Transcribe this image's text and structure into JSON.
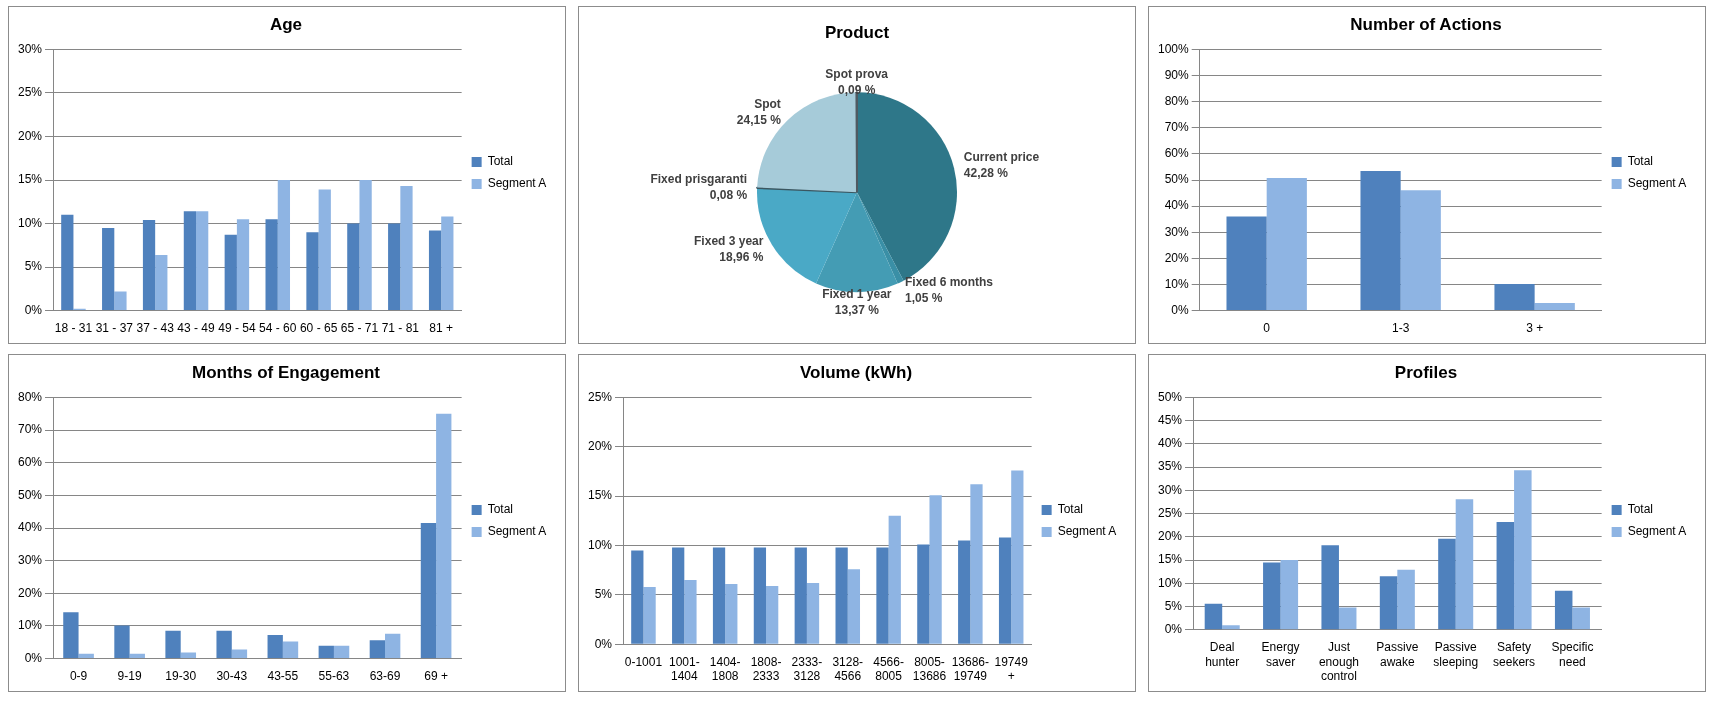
{
  "chart_data": [
    {
      "type": "bar",
      "title": "Age",
      "categories": [
        "18 - 31",
        "31 - 37",
        "37 - 43",
        "43 - 49",
        "49 - 54",
        "54 - 60",
        "60 - 65",
        "65 - 71",
        "71 - 81",
        "81 +"
      ],
      "series": [
        {
          "name": "Total",
          "color": "#4f81bd",
          "values": [
            11.0,
            9.5,
            10.4,
            11.4,
            8.7,
            10.5,
            9.0,
            10.0,
            10.0,
            9.2
          ]
        },
        {
          "name": "Segment A",
          "color": "#8eb4e3",
          "values": [
            0.2,
            2.2,
            6.4,
            11.4,
            10.5,
            15.0,
            13.9,
            15.0,
            14.3,
            10.8
          ]
        }
      ],
      "ylim": [
        0,
        30
      ],
      "yticks": [
        {
          "value": 0,
          "label": "0%"
        },
        {
          "value": 5,
          "label": "5%"
        },
        {
          "value": 10,
          "label": "10%"
        },
        {
          "value": 15,
          "label": "15%"
        },
        {
          "value": 20,
          "label": "20%"
        },
        {
          "value": 25,
          "label": "25%"
        },
        {
          "value": 30,
          "label": "30%"
        }
      ],
      "grid": "y",
      "legend": "right"
    },
    {
      "type": "pie",
      "title": "Product",
      "categories": [
        "Current price",
        "Fixed 6 months",
        "Fixed 1 year",
        "Fixed 3 year",
        "Fixed prisgaranti",
        "Spot",
        "Spot prova"
      ],
      "values": [
        42.28,
        1.05,
        13.37,
        18.96,
        0.08,
        24.15,
        0.09
      ],
      "colors": [
        "#2e7789",
        "#3a8fa6",
        "#449cb4",
        "#4aa9c6",
        "#3a5660",
        "#a6cbd9",
        "#4f5a62"
      ],
      "value_labels": [
        "42,28 %",
        "1,05 %",
        "13,37 %",
        "18,96 %",
        "0,08 %",
        "24,15 %",
        "0,09 %"
      ]
    },
    {
      "type": "bar",
      "title": "Number of Actions",
      "categories": [
        "0",
        "1-3",
        "3 +"
      ],
      "series": [
        {
          "name": "Total",
          "color": "#4f81bd",
          "values": [
            36.0,
            53.4,
            10.2
          ]
        },
        {
          "name": "Segment A",
          "color": "#8eb4e3",
          "values": [
            50.8,
            46.1,
            2.9
          ]
        }
      ],
      "ylim": [
        0,
        100
      ],
      "yticks": [
        {
          "value": 0,
          "label": "0%"
        },
        {
          "value": 10,
          "label": "10%"
        },
        {
          "value": 20,
          "label": "20%"
        },
        {
          "value": 30,
          "label": "30%"
        },
        {
          "value": 40,
          "label": "40%"
        },
        {
          "value": 50,
          "label": "50%"
        },
        {
          "value": 60,
          "label": "60%"
        },
        {
          "value": 70,
          "label": "70%"
        },
        {
          "value": 80,
          "label": "80%"
        },
        {
          "value": 90,
          "label": "90%"
        },
        {
          "value": 100,
          "label": "100%"
        }
      ],
      "grid": "y",
      "legend": "right"
    },
    {
      "type": "bar",
      "title": "Months of Engagement",
      "categories": [
        "0-9",
        "9-19",
        "19-30",
        "30-43",
        "43-55",
        "55-63",
        "63-69",
        "69 +"
      ],
      "series": [
        {
          "name": "Total",
          "color": "#4f81bd",
          "values": [
            14.2,
            10.1,
            8.5,
            8.5,
            7.2,
            3.9,
            5.6,
            41.5
          ]
        },
        {
          "name": "Segment A",
          "color": "#8eb4e3",
          "values": [
            1.5,
            1.5,
            1.9,
            2.8,
            5.2,
            3.9,
            7.6,
            75.0
          ]
        }
      ],
      "ylim": [
        0,
        80
      ],
      "yticks": [
        {
          "value": 0,
          "label": "0%"
        },
        {
          "value": 10,
          "label": "10%"
        },
        {
          "value": 20,
          "label": "20%"
        },
        {
          "value": 30,
          "label": "30%"
        },
        {
          "value": 40,
          "label": "40%"
        },
        {
          "value": 50,
          "label": "50%"
        },
        {
          "value": 60,
          "label": "60%"
        },
        {
          "value": 70,
          "label": "70%"
        },
        {
          "value": 80,
          "label": "80%"
        }
      ],
      "grid": "y",
      "legend": "right"
    },
    {
      "type": "bar",
      "title": "Volume (kWh)",
      "categories": [
        "0-1001",
        "1001-1404",
        "1404-1808",
        "1808-2333",
        "2333-3128",
        "3128-4566",
        "4566-8005",
        "8005-13686",
        "13686-19749",
        "19749 +"
      ],
      "series": [
        {
          "name": "Total",
          "color": "#4f81bd",
          "values": [
            9.5,
            9.8,
            9.8,
            9.8,
            9.8,
            9.8,
            9.8,
            10.1,
            10.5,
            10.8
          ]
        },
        {
          "name": "Segment A",
          "color": "#8eb4e3",
          "values": [
            5.8,
            6.5,
            6.1,
            5.9,
            6.2,
            7.6,
            13.0,
            15.1,
            16.2,
            17.6
          ]
        }
      ],
      "ylim": [
        0,
        25
      ],
      "yticks": [
        {
          "value": 0,
          "label": "0%"
        },
        {
          "value": 5,
          "label": "5%"
        },
        {
          "value": 10,
          "label": "10%"
        },
        {
          "value": 15,
          "label": "15%"
        },
        {
          "value": 20,
          "label": "20%"
        },
        {
          "value": 25,
          "label": "25%"
        }
      ],
      "grid": "y",
      "legend": "right"
    },
    {
      "type": "bar",
      "title": "Profiles",
      "categories": [
        "Deal hunter",
        "Energy saver",
        "Just enough control",
        "Passive awake",
        "Passive sleeping",
        "Safety seekers",
        "Specific need"
      ],
      "series": [
        {
          "name": "Total",
          "color": "#4f81bd",
          "values": [
            5.6,
            14.5,
            18.2,
            11.5,
            19.6,
            23.2,
            8.4
          ]
        },
        {
          "name": "Segment A",
          "color": "#8eb4e3",
          "values": [
            1.0,
            15.0,
            4.8,
            12.9,
            28.1,
            34.3,
            4.8
          ]
        }
      ],
      "ylim": [
        0,
        50
      ],
      "yticks": [
        {
          "value": 0,
          "label": "0%"
        },
        {
          "value": 5,
          "label": "5%"
        },
        {
          "value": 10,
          "label": "10%"
        },
        {
          "value": 15,
          "label": "15%"
        },
        {
          "value": 20,
          "label": "20%"
        },
        {
          "value": 25,
          "label": "25%"
        },
        {
          "value": 30,
          "label": "30%"
        },
        {
          "value": 35,
          "label": "35%"
        },
        {
          "value": 40,
          "label": "40%"
        },
        {
          "value": 45,
          "label": "45%"
        },
        {
          "value": 50,
          "label": "50%"
        }
      ],
      "grid": "y",
      "legend": "right"
    }
  ]
}
